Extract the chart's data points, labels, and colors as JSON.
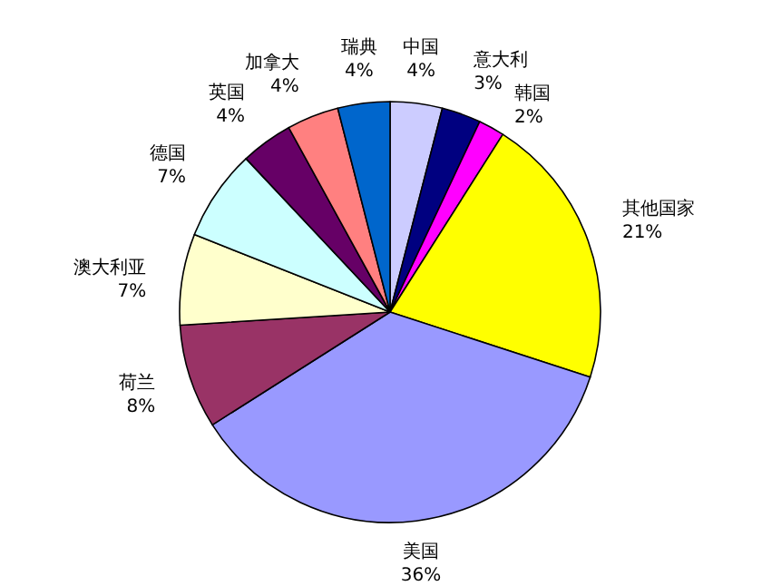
{
  "chart_data": {
    "type": "pie",
    "categories": [
      "中国",
      "意大利",
      "韩国",
      "其他国家",
      "美国",
      "荷兰",
      "澳大利亚",
      "德国",
      "英国",
      "加拿大",
      "瑞典"
    ],
    "values": [
      4,
      3,
      2,
      21,
      36,
      8,
      7,
      7,
      4,
      4,
      4
    ],
    "colors": [
      "#ccccff",
      "#000080",
      "#ff00ff",
      "#ffff00",
      "#9999ff",
      "#993366",
      "#ffffcc",
      "#ccffff",
      "#660066",
      "#ff8080",
      "#0066cc"
    ],
    "value_labels": [
      "4%",
      "3%",
      "2%",
      "21%",
      "36%",
      "8%",
      "7%",
      "7%",
      "4%",
      "4%",
      "4%"
    ]
  }
}
